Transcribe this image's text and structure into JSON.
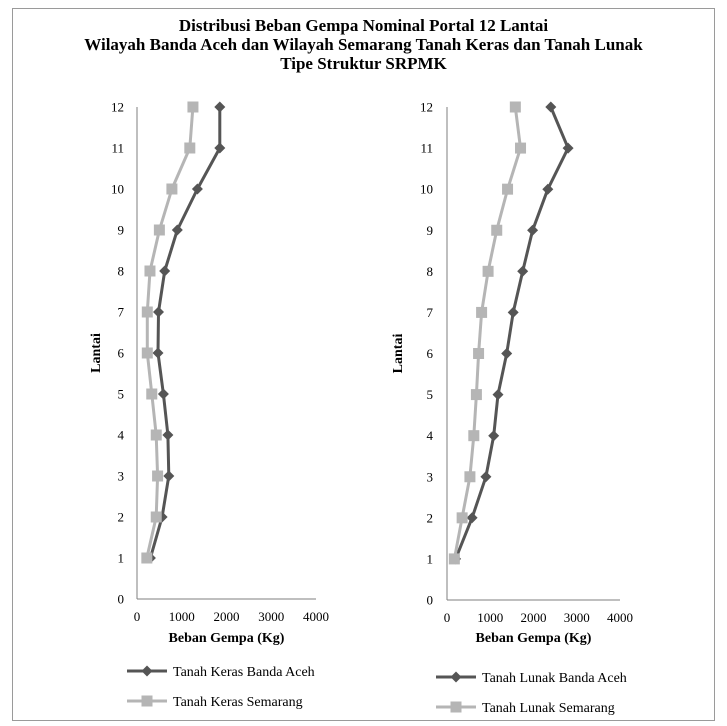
{
  "title_lines": [
    "Distribusi Beban Gempa Nominal Portal 12 Lantai",
    "Wilayah  Banda Aceh dan Wilayah  Semarang Tanah Keras dan Tanah Lunak",
    "Tipe Struktur SRPMK"
  ],
  "colors": {
    "dark": "#555555",
    "light": "#b5b5b5",
    "axis": "#7f7f7f"
  },
  "chart_data": [
    {
      "type": "line",
      "xlabel": "Beban Gempa (Kg)",
      "ylabel": "Lantai",
      "xlim": [
        0,
        4000
      ],
      "ylim": [
        0,
        12
      ],
      "xticks": [
        0,
        1000,
        2000,
        3000,
        4000
      ],
      "yticks": [
        0,
        1,
        2,
        3,
        4,
        5,
        6,
        7,
        8,
        9,
        10,
        11,
        12
      ],
      "y": [
        1,
        2,
        3,
        4,
        5,
        6,
        7,
        8,
        9,
        10,
        11,
        12
      ],
      "series": [
        {
          "name": "Tanah Keras Banda Aceh",
          "marker": "diamond",
          "color": "#555555",
          "values": [
            300,
            560,
            710,
            690,
            590,
            470,
            480,
            620,
            900,
            1350,
            1850,
            1850
          ]
        },
        {
          "name": "Tanah Keras Semarang",
          "marker": "square",
          "color": "#b5b5b5",
          "values": [
            220,
            430,
            460,
            430,
            330,
            230,
            230,
            290,
            500,
            780,
            1180,
            1250
          ]
        }
      ]
    },
    {
      "type": "line",
      "xlabel": "Beban Gempa (Kg)",
      "ylabel": "Lantai",
      "xlim": [
        0,
        4000
      ],
      "ylim": [
        0,
        12
      ],
      "xticks": [
        0,
        1000,
        2000,
        3000,
        4000
      ],
      "yticks": [
        0,
        1,
        2,
        3,
        4,
        5,
        6,
        7,
        8,
        9,
        10,
        11,
        12
      ],
      "y": [
        1,
        2,
        3,
        4,
        5,
        6,
        7,
        8,
        9,
        10,
        11,
        12
      ],
      "series": [
        {
          "name": "Tanah Lunak Banda Aceh",
          "marker": "diamond",
          "color": "#555555",
          "values": [
            200,
            580,
            900,
            1080,
            1180,
            1380,
            1530,
            1750,
            1980,
            2330,
            2800,
            2400
          ]
        },
        {
          "name": "Tanah Lunak Semarang",
          "marker": "square",
          "color": "#b5b5b5",
          "values": [
            170,
            350,
            530,
            620,
            680,
            730,
            800,
            950,
            1150,
            1400,
            1700,
            1580
          ]
        }
      ]
    }
  ]
}
